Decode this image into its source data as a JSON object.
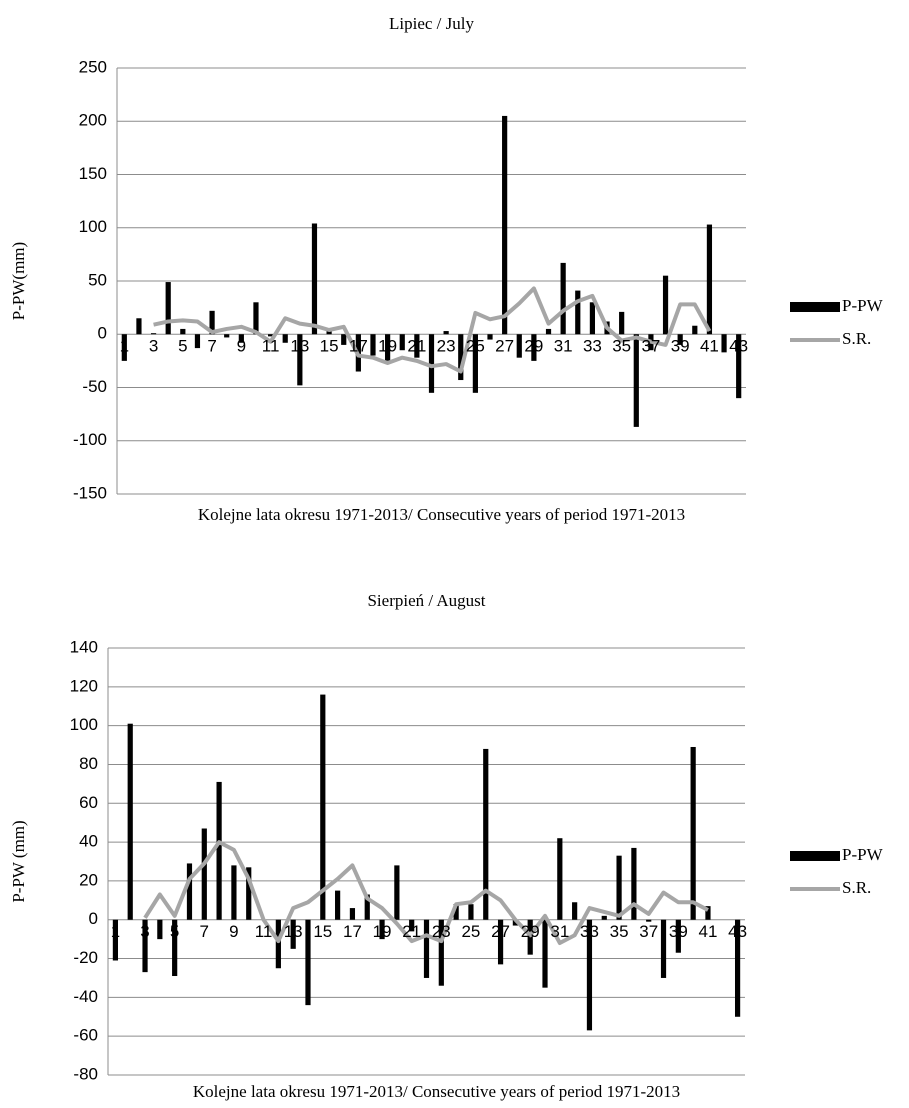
{
  "chart_data": [
    {
      "type": "bar_line",
      "title": "Lipiec / July",
      "x_label": "Kolejne lata okresu 1971-2013/ Consecutive years of period 1971-2013",
      "y_label": "P-PW(mm)",
      "categories": [
        "1",
        null,
        "3",
        null,
        "5",
        null,
        "7",
        null,
        "9",
        null,
        "11",
        null,
        "13",
        null,
        "15",
        null,
        "17",
        null,
        "19",
        null,
        "21",
        null,
        "23",
        null,
        "25",
        null,
        "27",
        null,
        "29",
        null,
        "31",
        null,
        "33",
        null,
        "35",
        null,
        "37",
        null,
        "39",
        null,
        "41",
        null,
        "43"
      ],
      "series": [
        {
          "name": "P-PW",
          "type": "bar",
          "color": "#000000",
          "values": [
            -25,
            15,
            1,
            49,
            5,
            -13,
            22,
            -3,
            -8,
            30,
            -2,
            -8,
            -48,
            104,
            5,
            -10,
            -35,
            -20,
            -25,
            -15,
            -22,
            -55,
            3,
            -43,
            -55,
            -5,
            205,
            -22,
            -25,
            5,
            67,
            41,
            30,
            12,
            21,
            -87,
            -15,
            55,
            -10,
            8,
            103,
            -17,
            -60
          ]
        },
        {
          "name": "S.R.",
          "type": "line",
          "color": "#a6a6a6",
          "values": [
            null,
            null,
            9,
            12,
            13,
            12,
            2,
            5,
            7,
            2,
            -7,
            15,
            10,
            8,
            4,
            7,
            -20,
            -22,
            -27,
            -22,
            -25,
            -30,
            -28,
            -35,
            20,
            14,
            17,
            29,
            43,
            10,
            22,
            31,
            36,
            6,
            -6,
            -3,
            -7,
            -10,
            28,
            28,
            3,
            null,
            null
          ]
        }
      ],
      "ylim": [
        -150,
        250
      ],
      "yticks": [
        -150,
        -100,
        -50,
        0,
        50,
        100,
        150,
        200,
        250
      ],
      "grid": true,
      "legend": "right"
    },
    {
      "type": "bar_line",
      "title": "Sierpień / August",
      "x_label": "Kolejne lata okresu 1971-2013/ Consecutive years of period 1971-2013",
      "y_label": "P-PW (mm)",
      "categories": [
        "1",
        null,
        "3",
        null,
        "5",
        null,
        "7",
        null,
        "9",
        null,
        "11",
        null,
        "13",
        null,
        "15",
        null,
        "17",
        null,
        "19",
        null,
        "21",
        null,
        "23",
        null,
        "25",
        null,
        "27",
        null,
        "29",
        null,
        "31",
        null,
        "33",
        null,
        "35",
        null,
        "37",
        null,
        "39",
        null,
        "41",
        null,
        "43"
      ],
      "series": [
        {
          "name": "P-PW",
          "type": "bar",
          "color": "#000000",
          "values": [
            -21,
            101,
            -27,
            -10,
            -29,
            29,
            47,
            71,
            28,
            27,
            0,
            -25,
            -15,
            -44,
            116,
            15,
            6,
            13,
            -10,
            28,
            -6,
            -30,
            -34,
            8,
            8,
            88,
            -23,
            -3,
            -18,
            -35,
            42,
            9,
            -57,
            2,
            33,
            37,
            -1,
            -30,
            -17,
            89,
            7,
            0,
            -50
          ]
        },
        {
          "name": "S.R.",
          "type": "line",
          "color": "#a6a6a6",
          "values": [
            null,
            null,
            1,
            13,
            2,
            21,
            29,
            40,
            36,
            21,
            0,
            -11,
            6,
            9,
            15,
            21,
            28,
            11,
            6,
            -2,
            -11,
            -8,
            -11,
            8,
            9,
            15,
            10,
            0,
            -8,
            2,
            -12,
            -8,
            6,
            4,
            2,
            8,
            3,
            14,
            9,
            9,
            5,
            null,
            null
          ]
        }
      ],
      "ylim": [
        -80,
        140
      ],
      "yticks": [
        -80,
        -60,
        -40,
        -20,
        0,
        20,
        40,
        60,
        80,
        100,
        120,
        140
      ],
      "grid": true,
      "legend": "right"
    }
  ]
}
